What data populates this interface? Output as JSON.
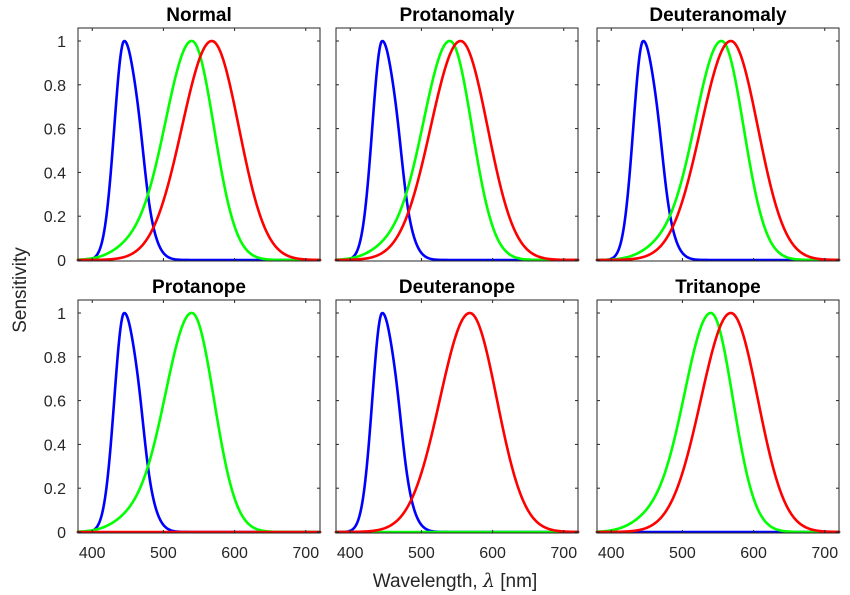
{
  "figure": {
    "ylabel": "Sensitivity",
    "xlabel_prefix": "Wavelength, ",
    "xlabel_symbol": "λ",
    "xlabel_suffix": " [nm]"
  },
  "chart_data": [
    {
      "type": "line",
      "title": "Normal",
      "xlim": [
        380,
        720
      ],
      "ylim": [
        0,
        1.05
      ],
      "xticks": [
        400,
        500,
        600,
        700
      ],
      "yticks": [
        0,
        0.2,
        0.4,
        0.6,
        0.8,
        1
      ],
      "series": [
        {
          "color": "#0000ff",
          "shape": "S",
          "peak": 445
        },
        {
          "color": "#00ff00",
          "shape": "M",
          "peak": 540
        },
        {
          "color": "#ff0000",
          "shape": "L",
          "peak": 568
        }
      ]
    },
    {
      "type": "line",
      "title": "Protanomaly",
      "xlim": [
        380,
        720
      ],
      "ylim": [
        0,
        1.05
      ],
      "xticks": [
        400,
        500,
        600,
        700
      ],
      "yticks": [
        0,
        0.2,
        0.4,
        0.6,
        0.8,
        1
      ],
      "series": [
        {
          "color": "#0000ff",
          "shape": "S",
          "peak": 445
        },
        {
          "color": "#00ff00",
          "shape": "M",
          "peak": 540
        },
        {
          "color": "#ff0000",
          "shape": "L",
          "peak": 555
        }
      ]
    },
    {
      "type": "line",
      "title": "Deuteranomaly",
      "xlim": [
        380,
        720
      ],
      "ylim": [
        0,
        1.05
      ],
      "xticks": [
        400,
        500,
        600,
        700
      ],
      "yticks": [
        0,
        0.2,
        0.4,
        0.6,
        0.8,
        1
      ],
      "series": [
        {
          "color": "#0000ff",
          "shape": "S",
          "peak": 445
        },
        {
          "color": "#00ff00",
          "shape": "M",
          "peak": 555
        },
        {
          "color": "#ff0000",
          "shape": "L",
          "peak": 568
        }
      ]
    },
    {
      "type": "line",
      "title": "Protanope",
      "xlim": [
        380,
        720
      ],
      "ylim": [
        0,
        1.05
      ],
      "xticks": [
        400,
        500,
        600,
        700
      ],
      "yticks": [
        0,
        0.2,
        0.4,
        0.6,
        0.8,
        1
      ],
      "series": [
        {
          "color": "#0000ff",
          "shape": "S",
          "peak": 445
        },
        {
          "color": "#00ff00",
          "shape": "M",
          "peak": 540
        },
        {
          "color": "#ff0000",
          "shape": "zero",
          "peak": 0
        }
      ]
    },
    {
      "type": "line",
      "title": "Deuteranope",
      "xlim": [
        380,
        720
      ],
      "ylim": [
        0,
        1.05
      ],
      "xticks": [
        400,
        500,
        600,
        700
      ],
      "yticks": [
        0,
        0.2,
        0.4,
        0.6,
        0.8,
        1
      ],
      "series": [
        {
          "color": "#0000ff",
          "shape": "S",
          "peak": 445
        },
        {
          "color": "#00ff00",
          "shape": "zero",
          "peak": 0
        },
        {
          "color": "#ff0000",
          "shape": "L",
          "peak": 568
        }
      ]
    },
    {
      "type": "line",
      "title": "Tritanope",
      "xlim": [
        380,
        720
      ],
      "ylim": [
        0,
        1.05
      ],
      "xticks": [
        400,
        500,
        600,
        700
      ],
      "yticks": [
        0,
        0.2,
        0.4,
        0.6,
        0.8,
        1
      ],
      "series": [
        {
          "color": "#0000ff",
          "shape": "zero",
          "peak": 0
        },
        {
          "color": "#00ff00",
          "shape": "M",
          "peak": 540
        },
        {
          "color": "#ff0000",
          "shape": "L",
          "peak": 568
        }
      ]
    }
  ]
}
